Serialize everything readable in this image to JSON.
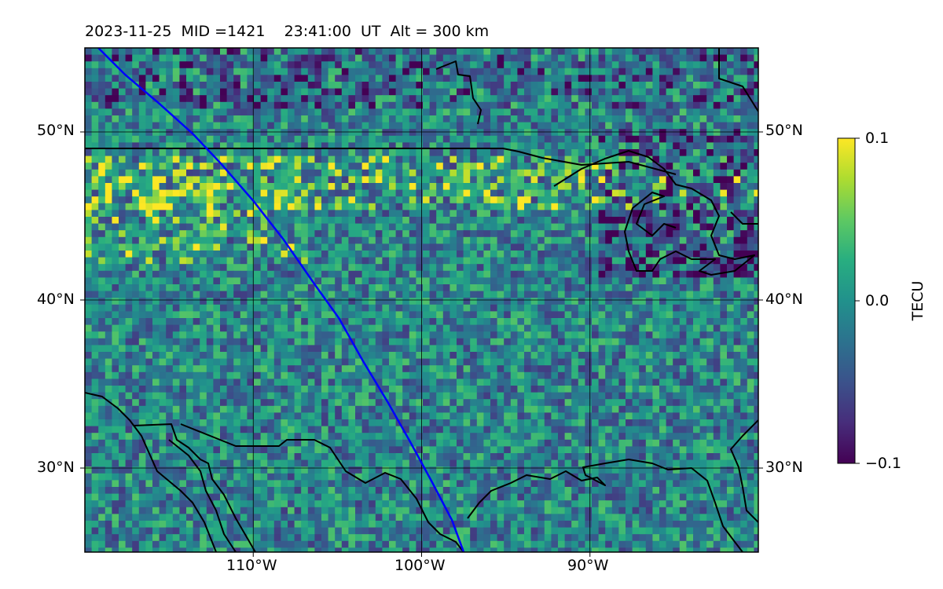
{
  "header": {
    "title": "2023-11-25  MID =1421    23:41:00  UT  Alt = 300 km"
  },
  "map": {
    "lon_range": [
      -120,
      -80
    ],
    "lat_range": [
      25,
      55
    ],
    "lat_ticks": [
      {
        "value": 50,
        "label": "50°N"
      },
      {
        "value": 40,
        "label": "40°N"
      },
      {
        "value": 30,
        "label": "30°N"
      }
    ],
    "lon_ticks": [
      {
        "value": -110,
        "label": "110°W"
      },
      {
        "value": -100,
        "label": "100°W"
      },
      {
        "value": -90,
        "label": "90°W"
      }
    ],
    "grid": true,
    "track_color": "#0000ff",
    "track": [
      [
        -119.2,
        55
      ],
      [
        -117.6,
        53.4
      ],
      [
        -115.6,
        51.7
      ],
      [
        -113.6,
        49.9
      ],
      [
        -111.9,
        48.1
      ],
      [
        -110.0,
        45.9
      ],
      [
        -108.2,
        43.6
      ],
      [
        -106.4,
        41.0
      ],
      [
        -104.9,
        38.9
      ],
      [
        -103.5,
        36.4
      ],
      [
        -102.0,
        33.9
      ],
      [
        -100.7,
        31.6
      ],
      [
        -99.4,
        29.2
      ],
      [
        -98.2,
        26.9
      ],
      [
        -97.5,
        25.0
      ]
    ]
  },
  "colorbar": {
    "label": "TECU",
    "min": -0.1,
    "max": 0.1,
    "colormap": "viridis",
    "ticks": [
      {
        "value": 0.1,
        "label": "0.1"
      },
      {
        "value": 0.0,
        "label": "0.0"
      },
      {
        "value": -0.1,
        "label": "−0.1"
      }
    ]
  }
}
